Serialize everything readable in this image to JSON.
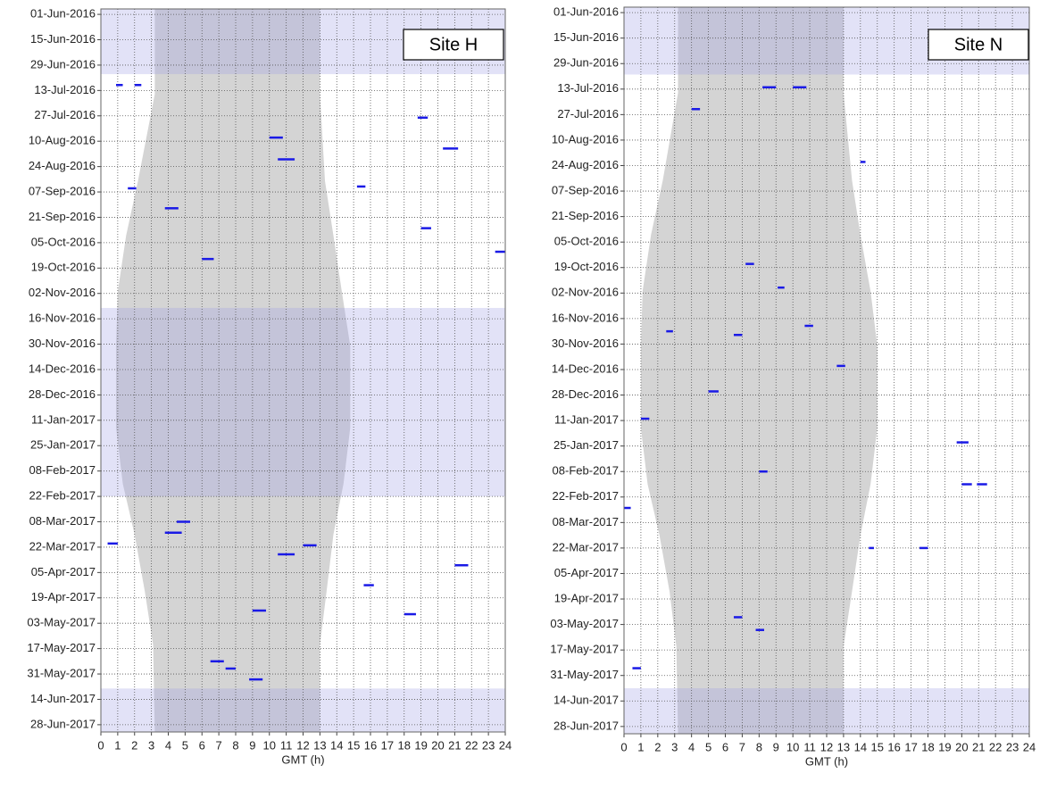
{
  "chart_data": [
    {
      "type": "timeline",
      "title": "Site H",
      "xlabel": "GMT (h)",
      "xlim": [
        0,
        24
      ],
      "xticks": [
        0,
        1,
        2,
        3,
        4,
        5,
        6,
        7,
        8,
        9,
        10,
        11,
        12,
        13,
        14,
        15,
        16,
        17,
        18,
        19,
        20,
        21,
        22,
        23,
        24
      ],
      "ylim": [
        "29-May-2016",
        "02-Jul-2017"
      ],
      "yticks": [
        "01-Jun-2016",
        "15-Jun-2016",
        "29-Jun-2016",
        "13-Jul-2016",
        "27-Jul-2016",
        "10-Aug-2016",
        "24-Aug-2016",
        "07-Sep-2016",
        "21-Sep-2016",
        "05-Oct-2016",
        "19-Oct-2016",
        "02-Nov-2016",
        "16-Nov-2016",
        "30-Nov-2016",
        "14-Dec-2016",
        "28-Dec-2016",
        "11-Jan-2017",
        "25-Jan-2017",
        "08-Feb-2017",
        "22-Feb-2017",
        "08-Mar-2017",
        "22-Mar-2017",
        "05-Apr-2017",
        "19-Apr-2017",
        "03-May-2017",
        "17-May-2017",
        "31-May-2017",
        "14-Jun-2017",
        "28-Jun-2017"
      ],
      "grid": true,
      "night": {
        "dates": [
          "29-May-2016",
          "15-Jul-2016",
          "01-Sep-2016",
          "01-Oct-2016",
          "01-Nov-2016",
          "01-Dec-2016",
          "15-Jan-2017",
          "15-Feb-2017",
          "15-Mar-2017",
          "15-Apr-2017",
          "15-May-2017",
          "02-Jul-2017"
        ],
        "start": [
          3.2,
          3.2,
          2.2,
          1.5,
          1.0,
          0.9,
          0.9,
          1.3,
          2.0,
          2.6,
          3.1,
          3.2
        ],
        "end": [
          13.0,
          13.0,
          13.3,
          13.8,
          14.3,
          14.8,
          14.8,
          14.4,
          13.8,
          13.4,
          13.0,
          13.0
        ],
        "color": "#d4d4d4"
      },
      "no_data": [
        {
          "from": "29-May-2016",
          "to": "04-Jul-2016"
        },
        {
          "from": "10-Nov-2016",
          "to": "22-Feb-2017"
        },
        {
          "from": "08-Jun-2017",
          "to": "02-Jul-2017"
        }
      ],
      "no_data_color": "#a0a0e6",
      "color": "#1a1ae6",
      "detections": [
        {
          "date": "10-Jul-2016",
          "start": 0.9,
          "end": 1.3
        },
        {
          "date": "10-Jul-2016",
          "start": 2.0,
          "end": 2.4
        },
        {
          "date": "28-Jul-2016",
          "start": 18.8,
          "end": 19.4
        },
        {
          "date": "08-Aug-2016",
          "start": 10.0,
          "end": 10.8
        },
        {
          "date": "14-Aug-2016",
          "start": 20.3,
          "end": 21.2
        },
        {
          "date": "20-Aug-2016",
          "start": 10.5,
          "end": 11.5
        },
        {
          "date": "04-Sep-2016",
          "start": 15.2,
          "end": 15.7
        },
        {
          "date": "05-Sep-2016",
          "start": 1.6,
          "end": 2.1
        },
        {
          "date": "16-Sep-2016",
          "start": 3.8,
          "end": 4.6
        },
        {
          "date": "27-Sep-2016",
          "start": 19.0,
          "end": 19.6
        },
        {
          "date": "10-Oct-2016",
          "start": 23.4,
          "end": 24.0
        },
        {
          "date": "14-Oct-2016",
          "start": 6.0,
          "end": 6.7
        },
        {
          "date": "08-Mar-2017",
          "start": 4.5,
          "end": 5.3
        },
        {
          "date": "14-Mar-2017",
          "start": 3.8,
          "end": 4.8
        },
        {
          "date": "20-Mar-2017",
          "start": 0.4,
          "end": 1.0
        },
        {
          "date": "21-Mar-2017",
          "start": 12.0,
          "end": 12.8
        },
        {
          "date": "26-Mar-2017",
          "start": 10.5,
          "end": 11.5
        },
        {
          "date": "01-Apr-2017",
          "start": 21.0,
          "end": 21.8
        },
        {
          "date": "12-Apr-2017",
          "start": 15.6,
          "end": 16.2
        },
        {
          "date": "26-Apr-2017",
          "start": 9.0,
          "end": 9.8
        },
        {
          "date": "28-Apr-2017",
          "start": 18.0,
          "end": 18.7
        },
        {
          "date": "24-May-2017",
          "start": 6.5,
          "end": 7.3
        },
        {
          "date": "28-May-2017",
          "start": 7.4,
          "end": 8.0
        },
        {
          "date": "03-Jun-2017",
          "start": 8.8,
          "end": 9.6
        }
      ]
    },
    {
      "type": "timeline",
      "title": "Site N",
      "xlabel": "GMT (h)",
      "xlim": [
        0,
        24
      ],
      "xticks": [
        0,
        1,
        2,
        3,
        4,
        5,
        6,
        7,
        8,
        9,
        10,
        11,
        12,
        13,
        14,
        15,
        16,
        17,
        18,
        19,
        20,
        21,
        22,
        23,
        24
      ],
      "ylim": [
        "29-May-2016",
        "02-Jul-2017"
      ],
      "yticks": [
        "01-Jun-2016",
        "15-Jun-2016",
        "29-Jun-2016",
        "13-Jul-2016",
        "27-Jul-2016",
        "10-Aug-2016",
        "24-Aug-2016",
        "07-Sep-2016",
        "21-Sep-2016",
        "05-Oct-2016",
        "19-Oct-2016",
        "02-Nov-2016",
        "16-Nov-2016",
        "30-Nov-2016",
        "14-Dec-2016",
        "28-Dec-2016",
        "11-Jan-2017",
        "25-Jan-2017",
        "08-Feb-2017",
        "22-Feb-2017",
        "08-Mar-2017",
        "22-Mar-2017",
        "05-Apr-2017",
        "19-Apr-2017",
        "03-May-2017",
        "17-May-2017",
        "31-May-2017",
        "14-Jun-2017",
        "28-Jun-2017"
      ],
      "grid": true,
      "night": {
        "dates": [
          "29-May-2016",
          "15-Jul-2016",
          "01-Sep-2016",
          "01-Oct-2016",
          "01-Nov-2016",
          "01-Dec-2016",
          "15-Jan-2017",
          "15-Feb-2017",
          "15-Mar-2017",
          "15-Apr-2017",
          "15-May-2017",
          "02-Jul-2017"
        ],
        "start": [
          3.2,
          3.2,
          2.3,
          1.6,
          1.1,
          1.0,
          1.0,
          1.4,
          2.1,
          2.7,
          3.1,
          3.2
        ],
        "end": [
          13.0,
          13.0,
          13.5,
          14.0,
          14.6,
          15.0,
          15.0,
          14.6,
          14.0,
          13.5,
          13.0,
          13.0
        ],
        "color": "#d4d4d4"
      },
      "no_data": [
        {
          "from": "29-May-2016",
          "to": "05-Jul-2016"
        },
        {
          "from": "07-Jun-2017",
          "to": "02-Jul-2017"
        }
      ],
      "no_data_color": "#a0a0e6",
      "color": "#1a1ae6",
      "detections": [
        {
          "date": "12-Jul-2016",
          "start": 8.2,
          "end": 9.0
        },
        {
          "date": "12-Jul-2016",
          "start": 10.0,
          "end": 10.8
        },
        {
          "date": "24-Jul-2016",
          "start": 4.0,
          "end": 4.5
        },
        {
          "date": "22-Aug-2016",
          "start": 14.0,
          "end": 14.3
        },
        {
          "date": "17-Oct-2016",
          "start": 7.2,
          "end": 7.7
        },
        {
          "date": "30-Oct-2016",
          "start": 9.1,
          "end": 9.5
        },
        {
          "date": "20-Nov-2016",
          "start": 10.7,
          "end": 11.2
        },
        {
          "date": "23-Nov-2016",
          "start": 2.5,
          "end": 2.9
        },
        {
          "date": "25-Nov-2016",
          "start": 6.5,
          "end": 7.0
        },
        {
          "date": "12-Dec-2016",
          "start": 12.6,
          "end": 13.1
        },
        {
          "date": "26-Dec-2016",
          "start": 5.0,
          "end": 5.6
        },
        {
          "date": "10-Jan-2017",
          "start": 1.0,
          "end": 1.5
        },
        {
          "date": "23-Jan-2017",
          "start": 19.7,
          "end": 20.4
        },
        {
          "date": "08-Feb-2017",
          "start": 8.0,
          "end": 8.5
        },
        {
          "date": "15-Feb-2017",
          "start": 20.0,
          "end": 20.6
        },
        {
          "date": "15-Feb-2017",
          "start": 20.9,
          "end": 21.5
        },
        {
          "date": "28-Feb-2017",
          "start": 0.0,
          "end": 0.4
        },
        {
          "date": "22-Mar-2017",
          "start": 14.5,
          "end": 14.8
        },
        {
          "date": "22-Mar-2017",
          "start": 17.5,
          "end": 18.0
        },
        {
          "date": "29-Apr-2017",
          "start": 6.5,
          "end": 7.0
        },
        {
          "date": "06-May-2017",
          "start": 7.8,
          "end": 8.3
        },
        {
          "date": "27-May-2017",
          "start": 0.5,
          "end": 1.0
        }
      ]
    }
  ]
}
